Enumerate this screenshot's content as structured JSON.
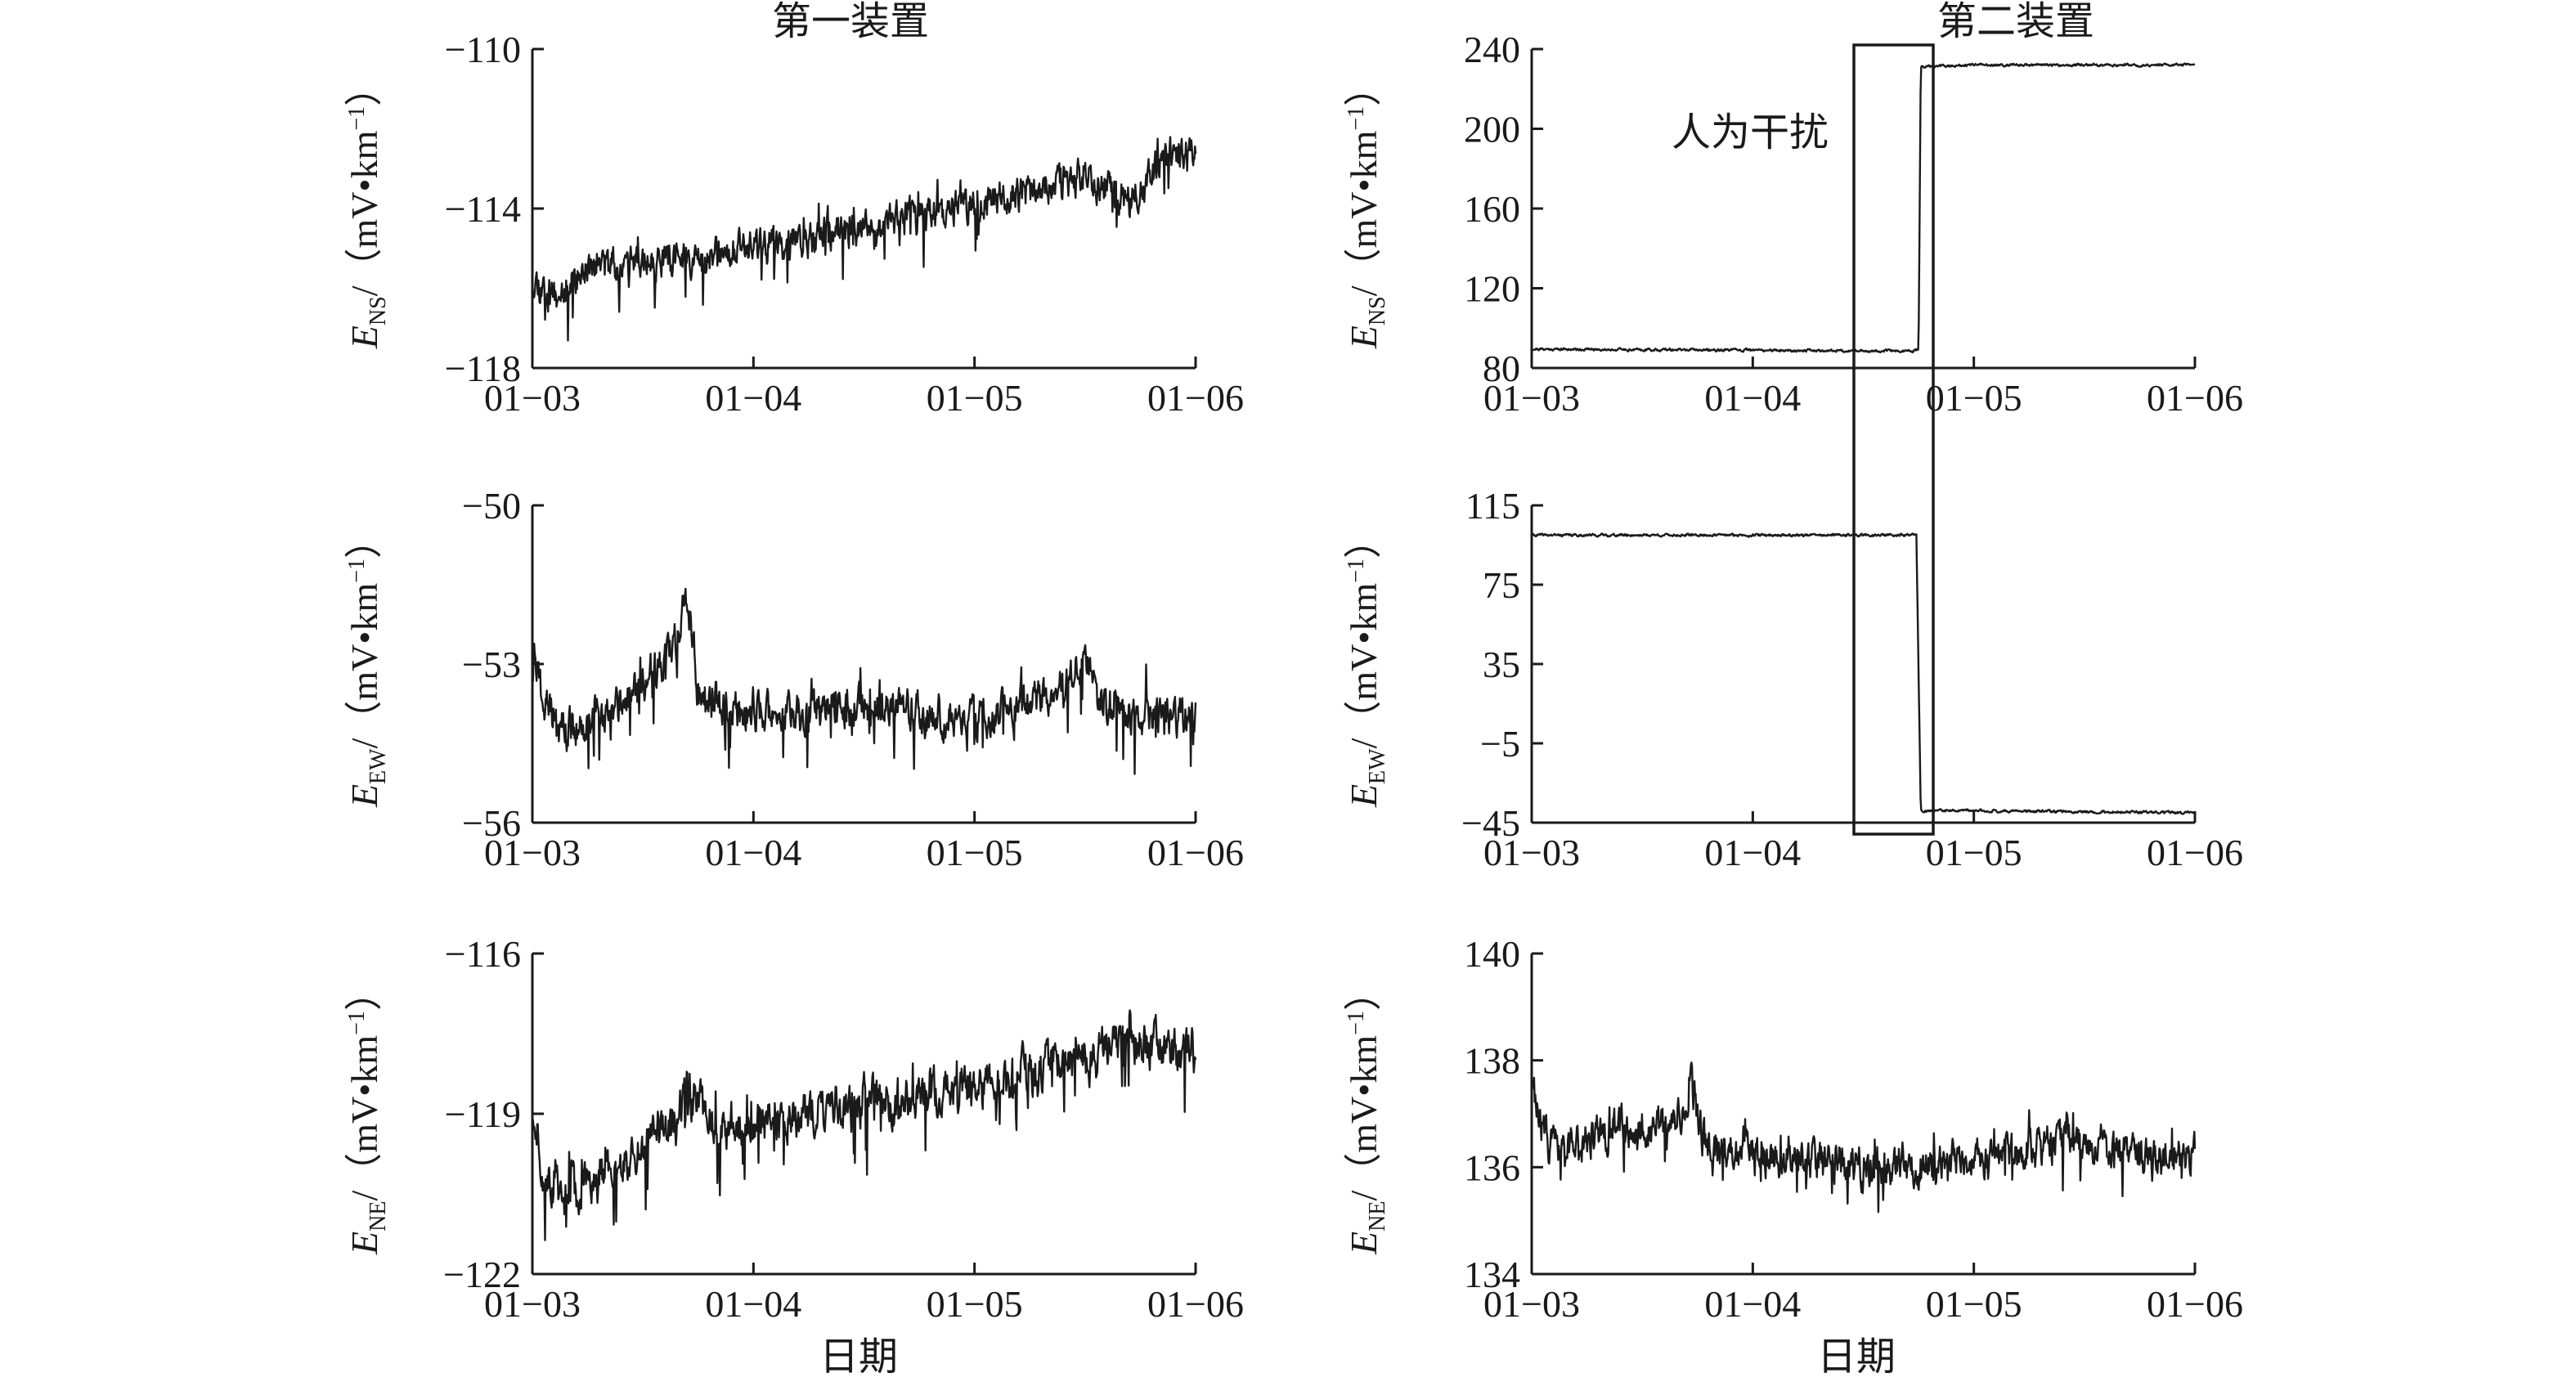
{
  "columns": [
    {
      "title": "第一装置"
    },
    {
      "title": "第二装置"
    }
  ],
  "xlabel": "日期",
  "annotation": {
    "text": "人为干扰"
  },
  "chart_data": [
    {
      "type": "line",
      "device": "第一装置",
      "component": "NS",
      "ylabel": {
        "main": "E",
        "sub": "NS",
        "unit": "/（mV•km",
        "exp": "−1",
        "close": "）"
      },
      "x_ticks": [
        "01−03",
        "01−04",
        "01−05",
        "01−06"
      ],
      "x_range": [
        0,
        3
      ],
      "y_ticks": [
        "−110",
        "−114",
        "−118"
      ],
      "ylim": [
        -118,
        -110
      ],
      "trend": [
        [
          0,
          -115.7
        ],
        [
          0.1,
          -116.2
        ],
        [
          0.25,
          -115.5
        ],
        [
          0.6,
          -115.3
        ],
        [
          1.0,
          -115.0
        ],
        [
          1.5,
          -114.5
        ],
        [
          2.0,
          -113.9
        ],
        [
          2.5,
          -113.2
        ],
        [
          2.7,
          -113.8
        ],
        [
          2.9,
          -112.5
        ],
        [
          3.0,
          -112.8
        ]
      ],
      "noise": 0.35,
      "spikes": 0.9,
      "seed": 11
    },
    {
      "type": "line",
      "device": "第二装置",
      "component": "NS",
      "ylabel": {
        "main": "E",
        "sub": "NS",
        "unit": "/（mV•km",
        "exp": "−1",
        "close": "）"
      },
      "x_ticks": [
        "01−03",
        "01−04",
        "01−05",
        "01−06"
      ],
      "x_range": [
        0,
        3
      ],
      "y_ticks": [
        "240",
        "200",
        "160",
        "120",
        "80"
      ],
      "ylim": [
        80,
        240
      ],
      "trend": [
        [
          0,
          89.5
        ],
        [
          1.7,
          88.5
        ],
        [
          1.75,
          89
        ],
        [
          1.76,
          231
        ],
        [
          2.0,
          232
        ],
        [
          3.0,
          232
        ]
      ],
      "noise": 0.5,
      "spikes": 0.0,
      "seed": 21
    },
    {
      "type": "line",
      "device": "第一装置",
      "component": "EW",
      "ylabel": {
        "main": "E",
        "sub": "EW",
        "unit": "/（mV•km",
        "exp": "−1",
        "close": "）"
      },
      "x_ticks": [
        "01−03",
        "01−04",
        "01−05",
        "01−06"
      ],
      "x_range": [
        0,
        3
      ],
      "y_ticks": [
        "−50",
        "−53",
        "−56"
      ],
      "ylim": [
        -56,
        -50
      ],
      "trend": [
        [
          0,
          -52.5
        ],
        [
          0.05,
          -53.8
        ],
        [
          0.15,
          -54.3
        ],
        [
          0.4,
          -53.8
        ],
        [
          0.65,
          -52.6
        ],
        [
          0.7,
          -51.6
        ],
        [
          0.75,
          -53.6
        ],
        [
          1.0,
          -54.0
        ],
        [
          1.5,
          -53.8
        ],
        [
          2.0,
          -54.1
        ],
        [
          2.4,
          -53.5
        ],
        [
          2.5,
          -52.8
        ],
        [
          2.6,
          -53.9
        ],
        [
          3.0,
          -54.0
        ]
      ],
      "noise": 0.3,
      "spikes": 0.9,
      "seed": 31
    },
    {
      "type": "line",
      "device": "第二装置",
      "component": "EW",
      "ylabel": {
        "main": "E",
        "sub": "EW",
        "unit": "/（mV•km",
        "exp": "−1",
        "close": "）"
      },
      "x_ticks": [
        "01−03",
        "01−04",
        "01−05",
        "01−06"
      ],
      "x_range": [
        0,
        3
      ],
      "y_ticks": [
        "115",
        "75",
        "35",
        "−5",
        "−45"
      ],
      "ylim": [
        -45,
        115
      ],
      "trend": [
        [
          0,
          100
        ],
        [
          1.0,
          100
        ],
        [
          1.74,
          100
        ],
        [
          1.76,
          -39
        ],
        [
          2.0,
          -39
        ],
        [
          3.0,
          -40
        ]
      ],
      "noise": 0.5,
      "spikes": 0.0,
      "seed": 41
    },
    {
      "type": "line",
      "device": "第一装置",
      "component": "NE",
      "ylabel": {
        "main": "E",
        "sub": "NE",
        "unit": "/（mV•km",
        "exp": "−1",
        "close": "）"
      },
      "x_ticks": [
        "01−03",
        "01−04",
        "01−05",
        "01−06"
      ],
      "x_range": [
        0,
        3
      ],
      "y_ticks": [
        "−116",
        "−119",
        "−122"
      ],
      "ylim": [
        -122,
        -116
      ],
      "trend": [
        [
          0,
          -119.0
        ],
        [
          0.05,
          -120.0
        ],
        [
          0.15,
          -120.5
        ],
        [
          0.4,
          -119.8
        ],
        [
          0.65,
          -119.2
        ],
        [
          0.7,
          -118.5
        ],
        [
          0.8,
          -119.2
        ],
        [
          1.0,
          -119.2
        ],
        [
          1.5,
          -118.8
        ],
        [
          2.0,
          -118.5
        ],
        [
          2.5,
          -118.0
        ],
        [
          2.7,
          -117.6
        ],
        [
          3.0,
          -117.9
        ]
      ],
      "noise": 0.35,
      "spikes": 1.0,
      "seed": 51
    },
    {
      "type": "line",
      "device": "第二装置",
      "component": "NE",
      "ylabel": {
        "main": "E",
        "sub": "NE",
        "unit": "/（mV•km",
        "exp": "−1",
        "close": "）"
      },
      "x_ticks": [
        "01−03",
        "01−04",
        "01−05",
        "01−06"
      ],
      "x_range": [
        0,
        3
      ],
      "y_ticks": [
        "140",
        "138",
        "136",
        "134"
      ],
      "ylim": [
        134,
        140
      ],
      "trend": [
        [
          0,
          137.6
        ],
        [
          0.05,
          136.6
        ],
        [
          0.15,
          136.2
        ],
        [
          0.35,
          136.7
        ],
        [
          0.65,
          136.8
        ],
        [
          0.72,
          137.5
        ],
        [
          0.8,
          136.3
        ],
        [
          1.2,
          136.1
        ],
        [
          1.8,
          136.0
        ],
        [
          2.2,
          136.2
        ],
        [
          2.5,
          136.6
        ],
        [
          2.7,
          136.2
        ],
        [
          3.0,
          136.2
        ]
      ],
      "noise": 0.3,
      "spikes": 0.7,
      "seed": 61
    }
  ]
}
